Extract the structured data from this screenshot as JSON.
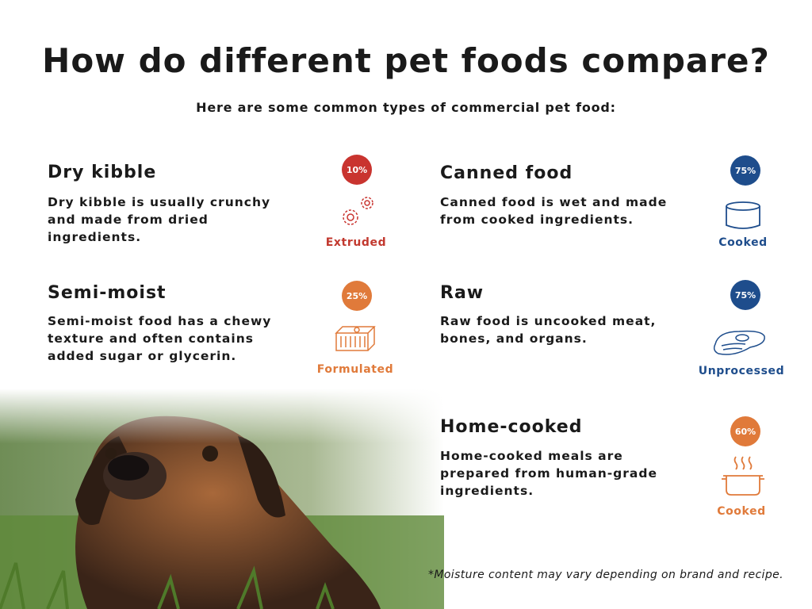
{
  "header": {
    "title": "How do different pet foods compare?",
    "subtitle": "Here are some common types of commercial pet food:"
  },
  "items": [
    {
      "name": "Dry kibble",
      "description": [
        "Dry kibble is usually crunchy",
        "and made from dried",
        "ingredients."
      ],
      "badge": "10%",
      "label": "Extruded"
    },
    {
      "name": "Canned food",
      "description": [
        "Canned food is wet and made",
        "from cooked ingredients."
      ],
      "badge": "75%",
      "label": "Cooked"
    },
    {
      "name": "Semi-moist",
      "description": [
        "Semi-moist food has a chewy",
        "texture and often contains",
        "added sugar or glycerin."
      ],
      "badge": "25%",
      "label": "Formulated"
    },
    {
      "name": "Raw",
      "description": [
        "Raw food is uncooked meat,",
        "bones, and organs."
      ],
      "badge": "75%",
      "label": "Unprocessed"
    },
    {
      "name": "Home-cooked",
      "description": [
        "Home-cooked meals are",
        "prepared from human-grade",
        "ingredients."
      ],
      "badge": "60%",
      "label": "Cooked"
    }
  ],
  "footnote": "*Moisture content may vary depending on brand and recipe."
}
